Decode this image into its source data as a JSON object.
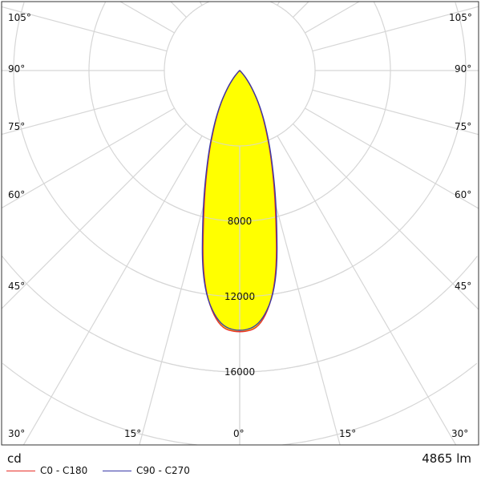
{
  "chart_data": {
    "type": "polar-line",
    "unit": "cd",
    "flux": "4865 lm",
    "radial_ticks": [
      {
        "value": 8000,
        "label": "8000"
      },
      {
        "value": 12000,
        "label": "12000"
      },
      {
        "value": 16000,
        "label": "16000"
      }
    ],
    "radial_grid": [
      4000,
      8000,
      12000,
      16000,
      20000
    ],
    "angle_labels_left": [
      "105°",
      "90°",
      "75°",
      "60°",
      "45°",
      "30°",
      "15°"
    ],
    "angle_labels_right": [
      "105°",
      "90°",
      "75°",
      "60°",
      "45°",
      "30°",
      "15°"
    ],
    "angle_label_zero": "0°",
    "grid": true,
    "angles": [
      0,
      5,
      10,
      15,
      20,
      25,
      30,
      35,
      40,
      45,
      50,
      60
    ],
    "series": [
      {
        "name": "C0 - C180",
        "color": "#e8302a",
        "values": [
          13950,
          13650,
          11400,
          7400,
          4900,
          3200,
          2050,
          1150,
          550,
          180,
          40,
          0
        ]
      },
      {
        "name": "C90 - C270",
        "color": "#3a3aa8",
        "values": [
          13900,
          13500,
          11500,
          7600,
          5000,
          3300,
          2100,
          1150,
          550,
          180,
          40,
          0
        ]
      }
    ],
    "fill_color": "#ffff00",
    "legend_position": "bottom-left"
  }
}
